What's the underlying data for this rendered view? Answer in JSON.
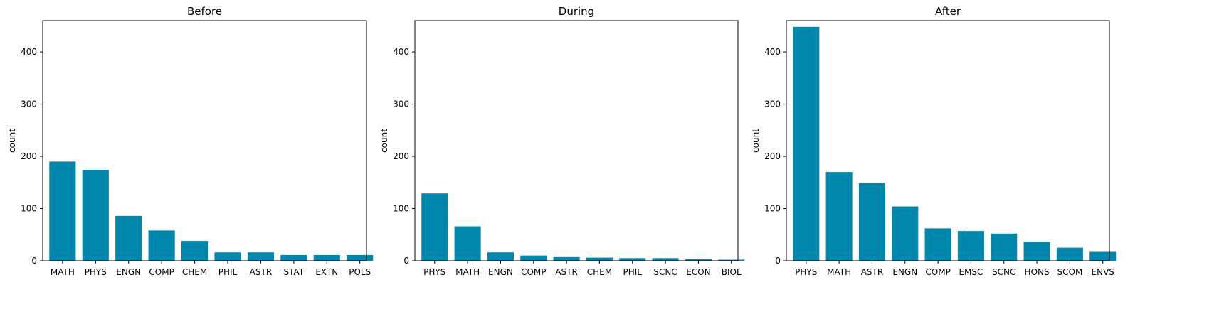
{
  "chart_data": [
    {
      "type": "bar",
      "title": "Before",
      "xlabel": "",
      "ylabel": "count",
      "ylim": [
        0,
        460
      ],
      "yticks": [
        0,
        100,
        200,
        300,
        400
      ],
      "bar_color": "#0087ad",
      "categories": [
        "MATH",
        "PHYS",
        "ENGN",
        "COMP",
        "CHEM",
        "PHIL",
        "ASTR",
        "STAT",
        "EXTN",
        "POLS"
      ],
      "values": [
        190,
        174,
        86,
        58,
        38,
        16,
        16,
        11,
        11,
        11
      ]
    },
    {
      "type": "bar",
      "title": "During",
      "xlabel": "",
      "ylabel": "count",
      "ylim": [
        0,
        460
      ],
      "yticks": [
        0,
        100,
        200,
        300,
        400
      ],
      "bar_color": "#0087ad",
      "categories": [
        "PHYS",
        "MATH",
        "ENGN",
        "COMP",
        "ASTR",
        "CHEM",
        "PHIL",
        "SCNC",
        "ECON",
        "BIOL"
      ],
      "values": [
        129,
        66,
        16,
        10,
        7,
        6,
        5,
        5,
        3,
        2
      ]
    },
    {
      "type": "bar",
      "title": "After",
      "xlabel": "",
      "ylabel": "count",
      "ylim": [
        0,
        460
      ],
      "yticks": [
        0,
        100,
        200,
        300,
        400
      ],
      "bar_color": "#0087ad",
      "categories": [
        "PHYS",
        "MATH",
        "ASTR",
        "ENGN",
        "COMP",
        "EMSC",
        "SCNC",
        "HONS",
        "SCOM",
        "ENVS"
      ],
      "values": [
        448,
        170,
        149,
        104,
        62,
        57,
        52,
        36,
        25,
        17
      ]
    }
  ]
}
